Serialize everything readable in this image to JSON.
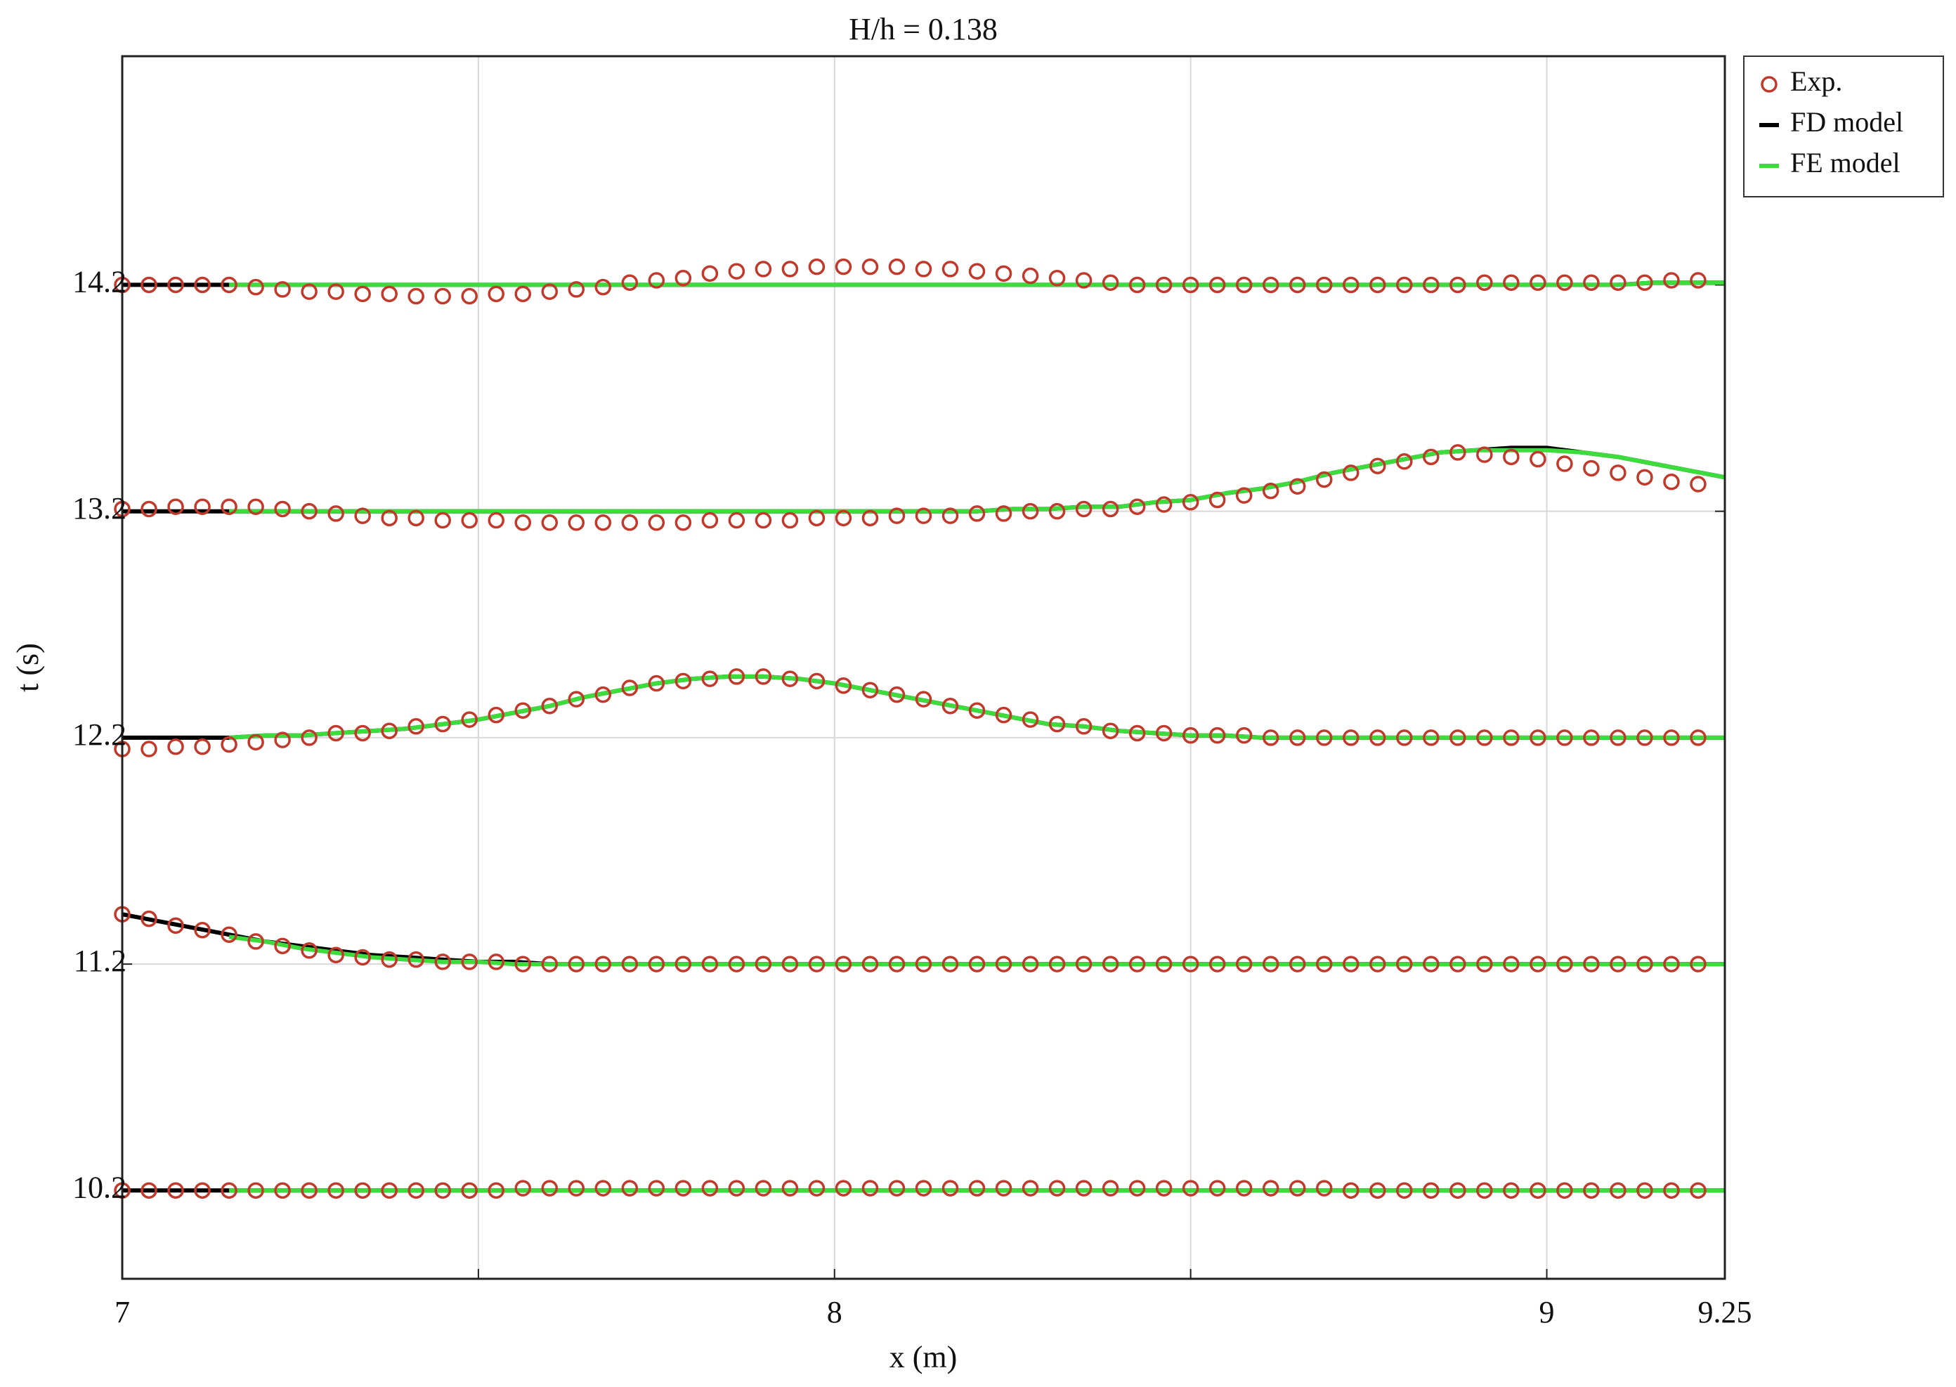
{
  "chart_data": {
    "type": "line",
    "title": "H/h = 0.138",
    "x_label": "x (m)",
    "y_label": "t (s)",
    "xlim": [
      7,
      9.25
    ],
    "xticks": [
      7,
      8,
      9,
      9.25
    ],
    "x_minor_grid": [
      7.5,
      8.5
    ],
    "ylim": [
      9.81,
      15.21
    ],
    "yticks": [
      10.2,
      11.2,
      12.2,
      13.2,
      14.2
    ],
    "grid": true,
    "legend": "outside-upper-right",
    "series": [
      {
        "name": "Exp.",
        "color": "#c0392b",
        "mode": "markers",
        "x": [
          7,
          7.0375,
          7.075,
          7.1125,
          7.15,
          7.1875,
          7.225,
          7.2625,
          7.3,
          7.3375,
          7.375,
          7.4125,
          7.45,
          7.4875,
          7.525,
          7.5625,
          7.6,
          7.6375,
          7.675,
          7.7125,
          7.75,
          7.7875,
          7.825,
          7.8625,
          7.9,
          7.9375,
          7.975,
          8.0125,
          8.05,
          8.0875,
          8.125,
          8.1625,
          8.2,
          8.2375,
          8.275,
          8.3125,
          8.35,
          8.3875,
          8.425,
          8.4625,
          8.5,
          8.5375,
          8.575,
          8.6125,
          8.65,
          8.6875,
          8.725,
          8.7625,
          8.8,
          8.8375,
          8.875,
          8.9125,
          8.95,
          8.9875,
          9.025,
          9.0625,
          9.1,
          9.1375,
          9.175,
          9.2125
        ],
        "values": [
          [
            10.2,
            10.2,
            10.2,
            10.2,
            10.2,
            10.2,
            10.2,
            10.2,
            10.2,
            10.2,
            10.2,
            10.2,
            10.2,
            10.2,
            10.2,
            10.21,
            10.21,
            10.21,
            10.21,
            10.21,
            10.21,
            10.21,
            10.21,
            10.21,
            10.21,
            10.21,
            10.21,
            10.21,
            10.21,
            10.21,
            10.21,
            10.21,
            10.21,
            10.21,
            10.21,
            10.21,
            10.21,
            10.21,
            10.21,
            10.21,
            10.21,
            10.21,
            10.21,
            10.21,
            10.21,
            10.21,
            10.2,
            10.2,
            10.2,
            10.2,
            10.2,
            10.2,
            10.2,
            10.2,
            10.2,
            10.2,
            10.2,
            10.2,
            10.2,
            10.2
          ],
          [
            11.42,
            11.4,
            11.37,
            11.35,
            11.33,
            11.3,
            11.28,
            11.26,
            11.24,
            11.23,
            11.22,
            11.22,
            11.21,
            11.21,
            11.21,
            11.2,
            11.2,
            11.2,
            11.2,
            11.2,
            11.2,
            11.2,
            11.2,
            11.2,
            11.2,
            11.2,
            11.2,
            11.2,
            11.2,
            11.2,
            11.2,
            11.2,
            11.2,
            11.2,
            11.2,
            11.2,
            11.2,
            11.2,
            11.2,
            11.2,
            11.2,
            11.2,
            11.2,
            11.2,
            11.2,
            11.2,
            11.2,
            11.2,
            11.2,
            11.2,
            11.2,
            11.2,
            11.2,
            11.2,
            11.2,
            11.2,
            11.2,
            11.2,
            11.2,
            11.2
          ],
          [
            12.15,
            12.15,
            12.16,
            12.16,
            12.17,
            12.18,
            12.19,
            12.2,
            12.22,
            12.22,
            12.23,
            12.25,
            12.26,
            12.28,
            12.3,
            12.32,
            12.34,
            12.37,
            12.39,
            12.42,
            12.44,
            12.45,
            12.46,
            12.47,
            12.47,
            12.46,
            12.45,
            12.43,
            12.41,
            12.39,
            12.37,
            12.34,
            12.32,
            12.3,
            12.28,
            12.26,
            12.25,
            12.23,
            12.22,
            12.22,
            12.21,
            12.21,
            12.21,
            12.2,
            12.2,
            12.2,
            12.2,
            12.2,
            12.2,
            12.2,
            12.2,
            12.2,
            12.2,
            12.2,
            12.2,
            12.2,
            12.2,
            12.2,
            12.2,
            12.2
          ],
          [
            13.21,
            13.21,
            13.22,
            13.22,
            13.22,
            13.22,
            13.21,
            13.2,
            13.19,
            13.18,
            13.17,
            13.17,
            13.16,
            13.16,
            13.16,
            13.15,
            13.15,
            13.15,
            13.15,
            13.15,
            13.15,
            13.15,
            13.16,
            13.16,
            13.16,
            13.16,
            13.17,
            13.17,
            13.17,
            13.18,
            13.18,
            13.18,
            13.19,
            13.19,
            13.2,
            13.2,
            13.21,
            13.21,
            13.22,
            13.23,
            13.24,
            13.25,
            13.27,
            13.29,
            13.31,
            13.34,
            13.37,
            13.4,
            13.42,
            13.44,
            13.46,
            13.45,
            13.44,
            13.43,
            13.41,
            13.39,
            13.37,
            13.35,
            13.33,
            13.32
          ],
          [
            14.2,
            14.2,
            14.2,
            14.2,
            14.2,
            14.19,
            14.18,
            14.17,
            14.17,
            14.16,
            14.16,
            14.15,
            14.15,
            14.15,
            14.16,
            14.16,
            14.17,
            14.18,
            14.19,
            14.21,
            14.22,
            14.23,
            14.25,
            14.26,
            14.27,
            14.27,
            14.28,
            14.28,
            14.28,
            14.28,
            14.27,
            14.27,
            14.26,
            14.25,
            14.24,
            14.23,
            14.22,
            14.21,
            14.2,
            14.2,
            14.2,
            14.2,
            14.2,
            14.2,
            14.2,
            14.2,
            14.2,
            14.2,
            14.2,
            14.2,
            14.2,
            14.21,
            14.21,
            14.21,
            14.21,
            14.21,
            14.21,
            14.21,
            14.22,
            14.22
          ]
        ]
      },
      {
        "name": "FD model",
        "color": "#000000",
        "mode": "lines",
        "x": [
          7,
          7.05,
          7.1,
          7.15,
          7.2,
          7.25,
          7.3,
          7.35,
          7.4,
          7.45,
          7.5,
          7.55,
          7.6,
          7.65,
          7.7,
          7.75,
          7.8,
          7.85,
          7.9,
          7.95,
          8,
          8.05,
          8.1,
          8.15,
          8.2,
          8.25,
          8.3,
          8.35,
          8.4,
          8.45,
          8.5,
          8.55,
          8.6,
          8.65,
          8.7,
          8.75,
          8.8,
          8.85,
          8.9,
          8.95,
          9,
          9.05,
          9.1,
          9.15,
          9.2,
          9.25
        ],
        "values": [
          [
            10.2,
            10.2,
            10.2,
            10.2,
            10.2,
            10.2,
            10.2,
            10.2,
            10.2,
            10.2,
            10.2,
            10.2,
            10.2,
            10.2,
            10.2,
            10.2,
            10.2,
            10.2,
            10.2,
            10.2,
            10.2,
            10.2,
            10.2,
            10.2,
            10.2,
            10.2,
            10.2,
            10.2,
            10.2,
            10.2,
            10.2,
            10.2,
            10.2,
            10.2,
            10.2,
            10.2,
            10.2,
            10.2,
            10.2,
            10.2,
            10.2,
            10.2,
            10.2,
            10.2,
            10.2,
            10.2
          ],
          [
            11.42,
            11.39,
            11.36,
            11.33,
            11.3,
            11.28,
            11.26,
            11.24,
            11.23,
            11.22,
            11.21,
            11.21,
            11.2,
            11.2,
            11.2,
            11.2,
            11.2,
            11.2,
            11.2,
            11.2,
            11.2,
            11.2,
            11.2,
            11.2,
            11.2,
            11.2,
            11.2,
            11.2,
            11.2,
            11.2,
            11.2,
            11.2,
            11.2,
            11.2,
            11.2,
            11.2,
            11.2,
            11.2,
            11.2,
            11.2,
            11.2,
            11.2,
            11.2,
            11.2,
            11.2,
            11.2
          ],
          [
            12.2,
            12.2,
            12.2,
            12.2,
            12.21,
            12.21,
            12.22,
            12.23,
            12.24,
            12.26,
            12.28,
            12.31,
            12.34,
            12.38,
            12.41,
            12.44,
            12.46,
            12.47,
            12.47,
            12.46,
            12.44,
            12.41,
            12.38,
            12.35,
            12.32,
            12.29,
            12.26,
            12.25,
            12.23,
            12.22,
            12.21,
            12.21,
            12.2,
            12.2,
            12.2,
            12.2,
            12.2,
            12.2,
            12.2,
            12.2,
            12.2,
            12.2,
            12.2,
            12.2,
            12.2,
            12.2
          ],
          [
            13.2,
            13.2,
            13.2,
            13.2,
            13.2,
            13.2,
            13.2,
            13.2,
            13.2,
            13.2,
            13.2,
            13.2,
            13.2,
            13.2,
            13.2,
            13.2,
            13.2,
            13.2,
            13.2,
            13.2,
            13.2,
            13.2,
            13.2,
            13.2,
            13.2,
            13.21,
            13.21,
            13.22,
            13.22,
            13.24,
            13.25,
            13.28,
            13.3,
            13.33,
            13.37,
            13.4,
            13.43,
            13.46,
            13.47,
            13.48,
            13.48,
            13.46,
            13.44,
            13.41,
            13.38,
            13.35
          ],
          [
            14.2,
            14.2,
            14.2,
            14.2,
            14.2,
            14.2,
            14.2,
            14.2,
            14.2,
            14.2,
            14.2,
            14.2,
            14.2,
            14.2,
            14.2,
            14.2,
            14.2,
            14.2,
            14.2,
            14.2,
            14.2,
            14.2,
            14.2,
            14.2,
            14.2,
            14.2,
            14.2,
            14.2,
            14.2,
            14.2,
            14.2,
            14.2,
            14.2,
            14.2,
            14.2,
            14.2,
            14.2,
            14.2,
            14.2,
            14.2,
            14.2,
            14.2,
            14.2,
            14.21,
            14.21,
            14.21
          ]
        ]
      },
      {
        "name": "FE model",
        "color": "#3ddc3d",
        "mode": "lines",
        "x": [
          7,
          7.05,
          7.1,
          7.15,
          7.2,
          7.25,
          7.3,
          7.35,
          7.4,
          7.45,
          7.5,
          7.55,
          7.6,
          7.65,
          7.7,
          7.75,
          7.8,
          7.85,
          7.9,
          7.95,
          8,
          8.05,
          8.1,
          8.15,
          8.2,
          8.25,
          8.3,
          8.35,
          8.4,
          8.45,
          8.5,
          8.55,
          8.6,
          8.65,
          8.7,
          8.75,
          8.8,
          8.85,
          8.9,
          8.95,
          9,
          9.05,
          9.1,
          9.15,
          9.2,
          9.25
        ],
        "values": [
          [
            null,
            null,
            null,
            10.2,
            10.2,
            10.2,
            10.2,
            10.2,
            10.2,
            10.2,
            10.2,
            10.2,
            10.2,
            10.2,
            10.2,
            10.2,
            10.2,
            10.2,
            10.2,
            10.2,
            10.2,
            10.2,
            10.2,
            10.2,
            10.2,
            10.2,
            10.2,
            10.2,
            10.2,
            10.2,
            10.2,
            10.2,
            10.2,
            10.2,
            10.2,
            10.2,
            10.2,
            10.2,
            10.2,
            10.2,
            10.2,
            10.2,
            10.2,
            10.2,
            10.2,
            10.2
          ],
          [
            null,
            null,
            null,
            11.32,
            11.3,
            11.27,
            11.25,
            11.23,
            11.22,
            11.21,
            11.21,
            11.2,
            11.2,
            11.2,
            11.2,
            11.2,
            11.2,
            11.2,
            11.2,
            11.2,
            11.2,
            11.2,
            11.2,
            11.2,
            11.2,
            11.2,
            11.2,
            11.2,
            11.2,
            11.2,
            11.2,
            11.2,
            11.2,
            11.2,
            11.2,
            11.2,
            11.2,
            11.2,
            11.2,
            11.2,
            11.2,
            11.2,
            11.2,
            11.2,
            11.2,
            11.2
          ],
          [
            null,
            null,
            null,
            12.2,
            12.21,
            12.21,
            12.22,
            12.23,
            12.24,
            12.26,
            12.28,
            12.31,
            12.34,
            12.38,
            12.41,
            12.44,
            12.46,
            12.47,
            12.47,
            12.46,
            12.44,
            12.41,
            12.38,
            12.35,
            12.32,
            12.29,
            12.26,
            12.25,
            12.23,
            12.22,
            12.21,
            12.21,
            12.2,
            12.2,
            12.2,
            12.2,
            12.2,
            12.2,
            12.2,
            12.2,
            12.2,
            12.2,
            12.2,
            12.2,
            12.2,
            12.2
          ],
          [
            null,
            null,
            null,
            13.2,
            13.2,
            13.2,
            13.2,
            13.2,
            13.2,
            13.2,
            13.2,
            13.2,
            13.2,
            13.2,
            13.2,
            13.2,
            13.2,
            13.2,
            13.2,
            13.2,
            13.2,
            13.2,
            13.2,
            13.2,
            13.2,
            13.21,
            13.21,
            13.22,
            13.22,
            13.24,
            13.25,
            13.28,
            13.3,
            13.33,
            13.37,
            13.4,
            13.43,
            13.46,
            13.47,
            13.47,
            13.47,
            13.46,
            13.44,
            13.41,
            13.38,
            13.35
          ],
          [
            null,
            null,
            null,
            14.2,
            14.2,
            14.2,
            14.2,
            14.2,
            14.2,
            14.2,
            14.2,
            14.2,
            14.2,
            14.2,
            14.2,
            14.2,
            14.2,
            14.2,
            14.2,
            14.2,
            14.2,
            14.2,
            14.2,
            14.2,
            14.2,
            14.2,
            14.2,
            14.2,
            14.2,
            14.2,
            14.2,
            14.2,
            14.2,
            14.2,
            14.2,
            14.2,
            14.2,
            14.2,
            14.2,
            14.2,
            14.2,
            14.2,
            14.2,
            14.21,
            14.21,
            14.21
          ]
        ]
      }
    ]
  }
}
